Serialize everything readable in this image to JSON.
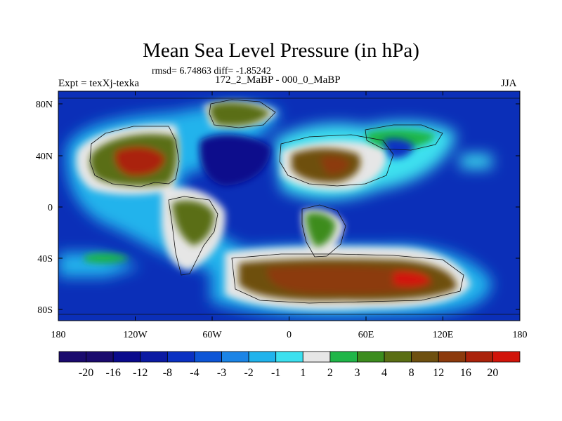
{
  "header": {
    "title": "Mean Sea Level Pressure (in hPa)",
    "stats": "rmsd= 6.74863 diff= -1.85242",
    "expt": "Expt = texXj-texka",
    "comparison": "172_2_MaBP - 000_0_MaBP",
    "season": "JJA"
  },
  "axes": {
    "y_ticks": [
      "80N",
      "40N",
      "0",
      "40S",
      "80S"
    ],
    "x_ticks": [
      "180",
      "120W",
      "60W",
      "0",
      "60E",
      "120E",
      "180"
    ]
  },
  "colorbar": {
    "colors": [
      "#1a0a6e",
      "#0a0a8c",
      "#0b1aa3",
      "#0a31c2",
      "#0d55d6",
      "#1b84e6",
      "#20b3ec",
      "#3ce0ef",
      "#e6e6e6",
      "#1fb648",
      "#3c8c1e",
      "#5a6e14",
      "#6e5010",
      "#8c3a0c",
      "#aa220a",
      "#d2140a"
    ],
    "labels": [
      "-20",
      "-16",
      "-12",
      "-8",
      "-4",
      "-3",
      "-2",
      "-1",
      "1",
      "2",
      "3",
      "4",
      "8",
      "12",
      "16",
      "20"
    ]
  }
}
